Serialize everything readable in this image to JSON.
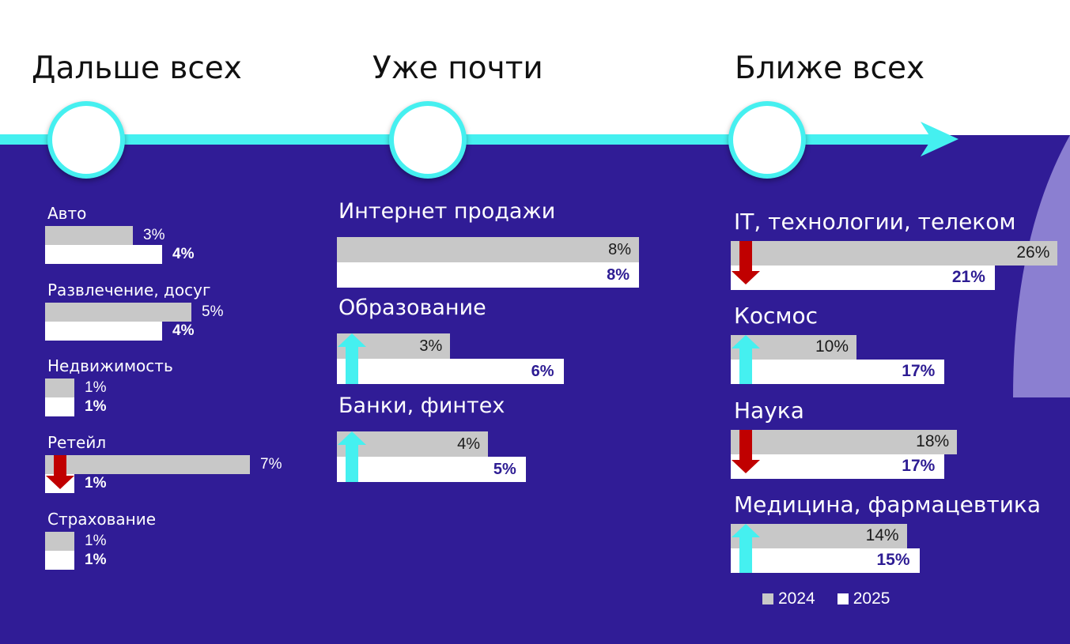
{
  "headings": {
    "far": "Дальше всех",
    "almost": "Уже почти",
    "close": "Ближе всех"
  },
  "colors": {
    "background": "#301c96",
    "timeline": "#45f0f0",
    "bar_2024": "#c8c8c8",
    "bar_2025": "#ffffff",
    "value_2025_inside": "#2d1c93",
    "arrow_up": "#45f0f0",
    "arrow_down": "#c00000",
    "decor_arc": "#8b7fd1"
  },
  "icons": [
    "arrow-up-icon",
    "arrow-down-icon",
    "timeline-arrow-icon"
  ],
  "chart_data": {
    "type": "bar",
    "orientation": "horizontal",
    "legend_position": "bottom-right",
    "legend": [
      {
        "label": "2024",
        "color": "#c8c8c8"
      },
      {
        "label": "2025",
        "color": "#ffffff"
      }
    ],
    "groups": [
      {
        "heading": "Дальше всех",
        "items": [
          {
            "category": "Авто",
            "v2024": "3%",
            "v2025": "4%",
            "trend": "none"
          },
          {
            "category": "Развлечение, досуг",
            "v2024": "5%",
            "v2025": "4%",
            "trend": "none"
          },
          {
            "category": "Недвижимость",
            "v2024": "1%",
            "v2025": "1%",
            "trend": "none"
          },
          {
            "category": "Ретейл",
            "v2024": "7%",
            "v2025": "1%",
            "trend": "down"
          },
          {
            "category": "Страхование",
            "v2024": "1%",
            "v2025": "1%",
            "trend": "none"
          }
        ]
      },
      {
        "heading": "Уже почти",
        "items": [
          {
            "category": "Интернет продажи",
            "v2024": "8%",
            "v2025": "8%",
            "trend": "none"
          },
          {
            "category": "Образование",
            "v2024": "3%",
            "v2025": "6%",
            "trend": "up"
          },
          {
            "category": "Банки, финтех",
            "v2024": "4%",
            "v2025": "5%",
            "trend": "up"
          }
        ]
      },
      {
        "heading": "Ближе всех",
        "items": [
          {
            "category": "IT, технологии, телеком",
            "v2024": "26%",
            "v2025": "21%",
            "trend": "down"
          },
          {
            "category": "Космос",
            "v2024": "10%",
            "v2025": "17%",
            "trend": "up"
          },
          {
            "category": "Наука",
            "v2024": "18%",
            "v2025": "17%",
            "trend": "down"
          },
          {
            "category": "Медицина, фармацевтика",
            "v2024": "14%",
            "v2025": "15%",
            "trend": "up"
          }
        ]
      }
    ]
  }
}
